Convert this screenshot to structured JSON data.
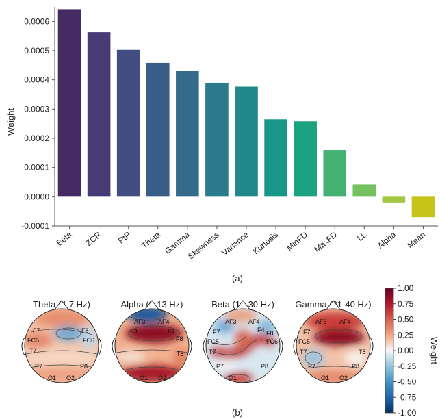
{
  "chart_data": [
    {
      "type": "bar",
      "panel_label": "(a)",
      "ylabel": "Weight",
      "xlabel": "",
      "ylim": [
        -0.0001,
        0.00065
      ],
      "yticks": [
        "-0.0001",
        "0.0000",
        "0.0001",
        "0.0002",
        "0.0003",
        "0.0004",
        "0.0005",
        "0.0006"
      ],
      "ytick_values": [
        -0.0001,
        0,
        0.0001,
        0.0002,
        0.0003,
        0.0004,
        0.0005,
        0.0006
      ],
      "categories": [
        "Beta",
        "ZCR",
        "PtP",
        "Theta",
        "Gamma",
        "Skewness",
        "Variance",
        "Kurtosis",
        "MinFD",
        "MaxFD",
        "LL",
        "Alpha",
        "Mean"
      ],
      "values": [
        0.000642,
        0.000563,
        0.000503,
        0.000458,
        0.00043,
        0.00039,
        0.000377,
        0.000265,
        0.000258,
        0.00016,
        4.2e-05,
        -2e-05,
        -7e-05
      ],
      "colors": [
        "#452a63",
        "#463b74",
        "#424e81",
        "#3a5d88",
        "#346b8b",
        "#2b7b8c",
        "#21898b",
        "#189688",
        "#1aa281",
        "#43b171",
        "#74c15d",
        "#a3c644",
        "#c7c217"
      ],
      "grid": false
    },
    {
      "type": "heatmap",
      "panel_label": "(b)",
      "maps": [
        {
          "title": "Theta (4-7 Hz)"
        },
        {
          "title": "Alpha (8-13 Hz)"
        },
        {
          "title": "Beta (14-30 Hz)"
        },
        {
          "title": "Gamma (31-40 Hz)"
        }
      ],
      "electrodes": [
        "AF3",
        "AF4",
        "F7",
        "F3",
        "F4",
        "F8",
        "FC5",
        "FC6",
        "T7",
        "T8",
        "P7",
        "P8",
        "O1",
        "O2"
      ],
      "colorbar": {
        "label": "Weight",
        "range": [
          -1.0,
          1.0
        ],
        "ticks": [
          "1.00",
          "0.75",
          "0.50",
          "0.25",
          "0.00",
          "-0.25",
          "-0.50",
          "-0.75",
          "-1.00"
        ]
      }
    }
  ]
}
